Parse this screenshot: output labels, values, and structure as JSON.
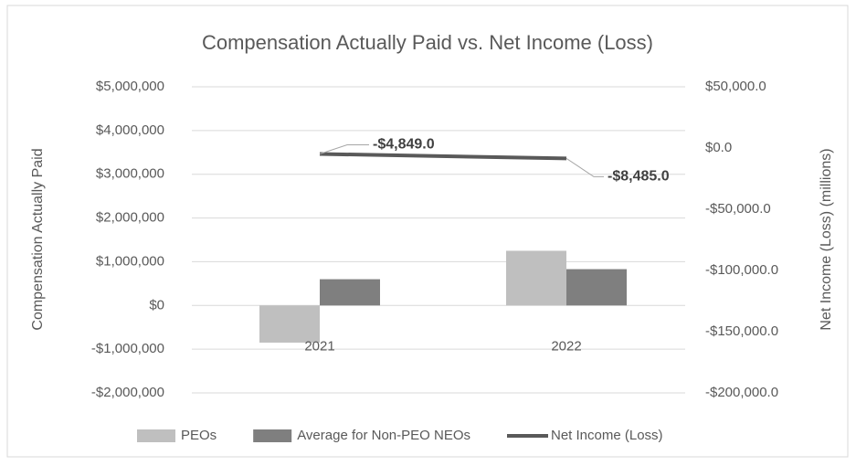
{
  "chart_data": {
    "type": "bar-line",
    "title": "Compensation Actually Paid vs. Net Income (Loss)",
    "y_label": "Compensation Actually Paid",
    "y2_label": "Net Income (Loss) (millions)",
    "categories": [
      "2021",
      "2022"
    ],
    "series": [
      {
        "name": "PEOs",
        "type": "bar",
        "color": "#bfbfbf",
        "values": [
          -850000,
          1250000
        ]
      },
      {
        "name": "Average for Non-PEO NEOs",
        "type": "bar",
        "color": "#7f7f7f",
        "values": [
          600000,
          830000
        ]
      },
      {
        "name": "Net Income (Loss)",
        "type": "line",
        "axis": "y2",
        "color": "#595959",
        "values": [
          -4849,
          -8485
        ],
        "value_labels": [
          "-$4,849.0",
          "-$8,485.0"
        ]
      }
    ],
    "ylim": [
      -2000000,
      5000000
    ],
    "yticks": [
      {
        "value": -2000000,
        "label": "-$2,000,000"
      },
      {
        "value": -1000000,
        "label": "-$1,000,000"
      },
      {
        "value": 0,
        "label": "$0"
      },
      {
        "value": 1000000,
        "label": "$1,000,000"
      },
      {
        "value": 2000000,
        "label": "$2,000,000"
      },
      {
        "value": 3000000,
        "label": "$3,000,000"
      },
      {
        "value": 4000000,
        "label": "$4,000,000"
      },
      {
        "value": 5000000,
        "label": "$5,000,000"
      }
    ],
    "y2lim": [
      -200000,
      50000
    ],
    "y2ticks": [
      {
        "value": -200000,
        "label": "-$200,000.0"
      },
      {
        "value": -150000,
        "label": "-$150,000.0"
      },
      {
        "value": -100000,
        "label": "-$100,000.0"
      },
      {
        "value": -50000,
        "label": "-$50,000.0"
      },
      {
        "value": 0,
        "label": "$0.0"
      },
      {
        "value": 50000,
        "label": "$50,000.0"
      }
    ],
    "grid": true,
    "legend": "bottom"
  }
}
